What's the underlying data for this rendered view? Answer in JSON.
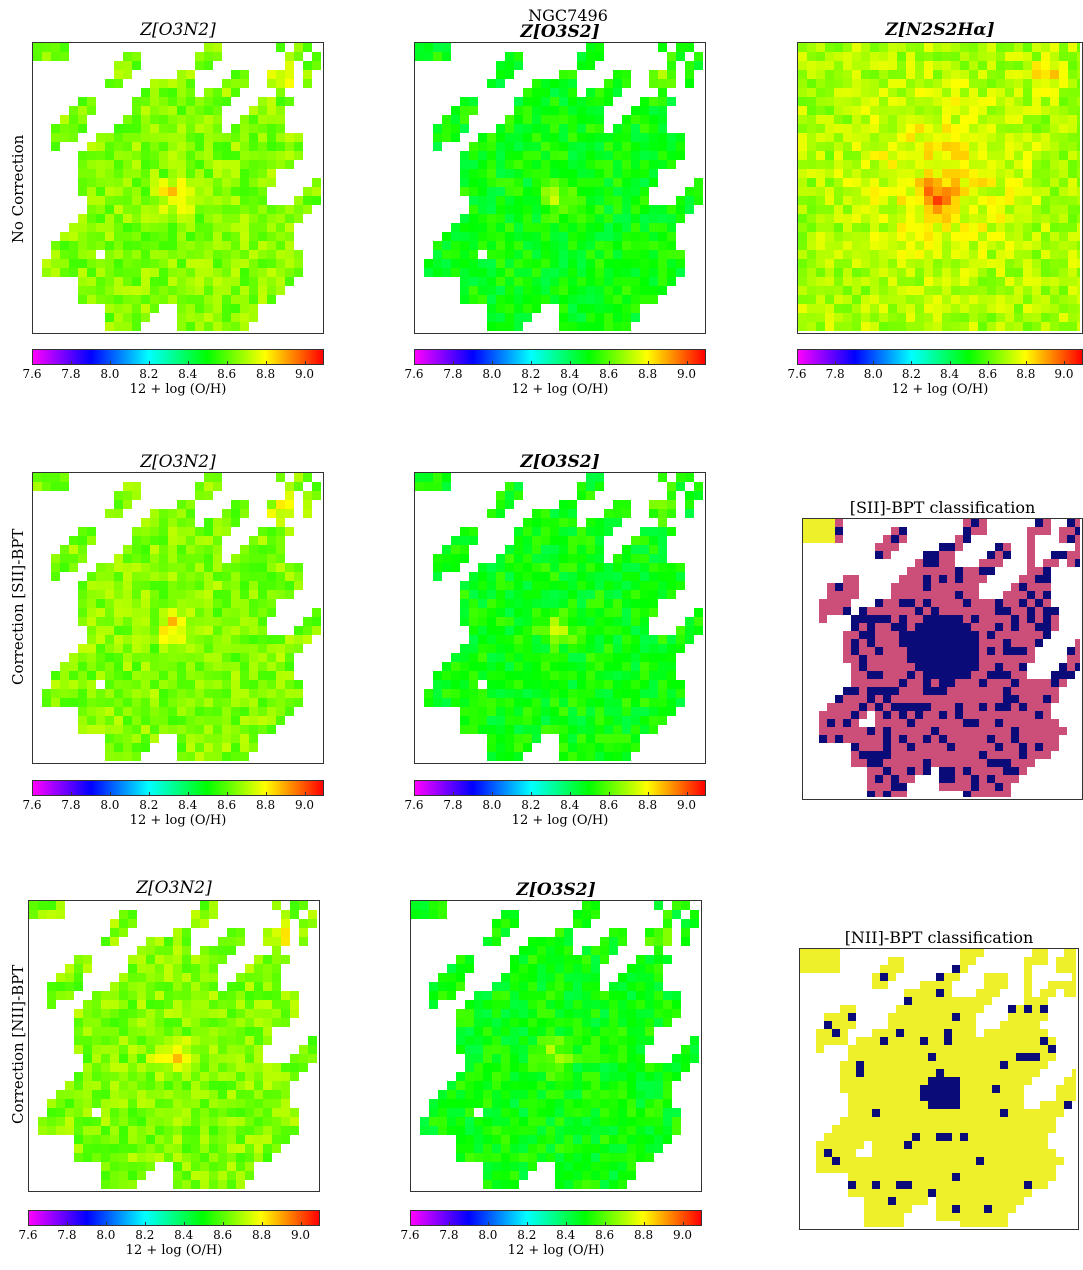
{
  "figure": {
    "suptitle": "NGC7496"
  },
  "chart_data": {
    "type": "heatmap",
    "colorbar": {
      "label": "12 + log (O/H)",
      "ticks": [
        "7.6",
        "7.8",
        "8.0",
        "8.2",
        "8.4",
        "8.6",
        "8.8",
        "9.0"
      ],
      "range": [
        7.6,
        9.1
      ],
      "colormap": [
        "#ff00ff",
        "#0000ff",
        "#00ffff",
        "#00ff00",
        "#ffff00",
        "#ff0000"
      ]
    },
    "rows": [
      {
        "label": "No Correction",
        "panels": [
          {
            "title": "Z[O3N2]",
            "kind": "metallicity",
            "typical_value": 8.65
          },
          {
            "title": "Z[O3S2]",
            "kind": "metallicity",
            "typical_value": 8.5
          },
          {
            "title": "Z[N2S2Hα]",
            "kind": "metallicity",
            "typical_value": 8.7
          }
        ]
      },
      {
        "label": "Correction [SII]-BPT",
        "panels": [
          {
            "title": "Z[O3N2]",
            "kind": "metallicity",
            "typical_value": 8.65
          },
          {
            "title": "Z[O3S2]",
            "kind": "metallicity",
            "typical_value": 8.5
          },
          {
            "title": "[SII]-BPT classification",
            "kind": "classification"
          }
        ]
      },
      {
        "label": "Correction [NII]-BPT",
        "panels": [
          {
            "title": "Z[O3N2]",
            "kind": "metallicity",
            "typical_value": 8.65
          },
          {
            "title": "Z[O3S2]",
            "kind": "metallicity",
            "typical_value": 8.5
          },
          {
            "title": "[NII]-BPT classification",
            "kind": "classification"
          }
        ]
      }
    ],
    "classification_colors": {
      "sii": [
        "#cc4f7a",
        "#0a0a78",
        "#eef02a"
      ],
      "nii": [
        "#eef02a",
        "#0a0a78"
      ]
    },
    "field_color_base": {
      "o3n2": "#c9ee3c",
      "o3s2": "#7fe82e",
      "n2s2": "#d8f030"
    }
  }
}
